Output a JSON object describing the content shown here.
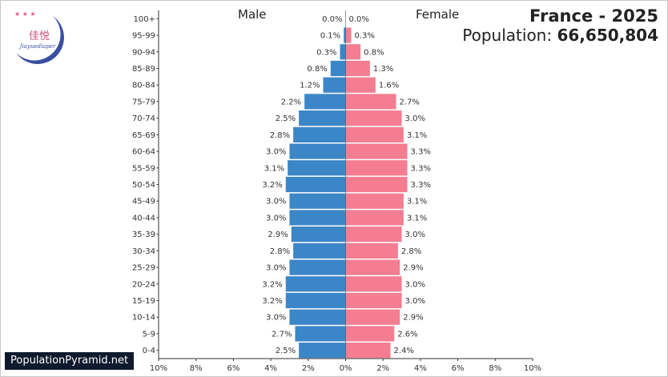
{
  "header": {
    "title": "France - 2025",
    "population_label": "Population:",
    "population_value": "66,650,804"
  },
  "labels": {
    "male": "Male",
    "female": "Female"
  },
  "source": "PopulationPyramid.net",
  "logo": {
    "name": "佳悦",
    "subtitle": "Jiayuediaper"
  },
  "colors": {
    "male": "#3b86c7",
    "female": "#f47d91"
  },
  "chart_data": {
    "type": "bar",
    "orientation": "horizontal-pyramid",
    "title": "France - 2025",
    "categories": [
      "100+",
      "95-99",
      "90-94",
      "85-89",
      "80-84",
      "75-79",
      "70-74",
      "65-69",
      "60-64",
      "55-59",
      "50-54",
      "45-49",
      "40-44",
      "35-39",
      "30-34",
      "25-29",
      "20-24",
      "15-19",
      "10-14",
      "5-9",
      "0-4"
    ],
    "series": [
      {
        "name": "Male",
        "values": [
          0.0,
          0.1,
          0.3,
          0.8,
          1.2,
          2.2,
          2.5,
          2.8,
          3.0,
          3.1,
          3.2,
          3.0,
          3.0,
          2.9,
          2.8,
          3.0,
          3.2,
          3.2,
          3.0,
          2.7,
          2.5
        ]
      },
      {
        "name": "Female",
        "values": [
          0.0,
          0.3,
          0.8,
          1.3,
          1.6,
          2.7,
          3.0,
          3.1,
          3.3,
          3.3,
          3.3,
          3.1,
          3.1,
          3.0,
          2.8,
          2.9,
          3.0,
          3.0,
          2.9,
          2.6,
          2.4
        ]
      }
    ],
    "value_labels": {
      "male": [
        "0.0%",
        "0.1%",
        "0.3%",
        "0.8%",
        "1.2%",
        "2.2%",
        "2.5%",
        "2.8%",
        "3.0%",
        "3.1%",
        "3.2%",
        "3.0%",
        "3.0%",
        "2.9%",
        "2.8%",
        "3.0%",
        "3.2%",
        "3.2%",
        "3.0%",
        "2.7%",
        "2.5%"
      ],
      "female": [
        "0.0%",
        "0.3%",
        "0.8%",
        "1.3%",
        "1.6%",
        "2.7%",
        "3.0%",
        "3.1%",
        "3.3%",
        "3.3%",
        "3.3%",
        "3.1%",
        "3.1%",
        "3.0%",
        "2.8%",
        "2.9%",
        "3.0%",
        "3.0%",
        "2.9%",
        "2.6%",
        "2.4%"
      ]
    },
    "xlim": [
      -10,
      10
    ],
    "x_ticks": [
      "10%",
      "8%",
      "6%",
      "4%",
      "2%",
      "0%",
      "2%",
      "4%",
      "6%",
      "8%",
      "10%"
    ],
    "xlabel": "",
    "ylabel": "",
    "grid": false
  }
}
